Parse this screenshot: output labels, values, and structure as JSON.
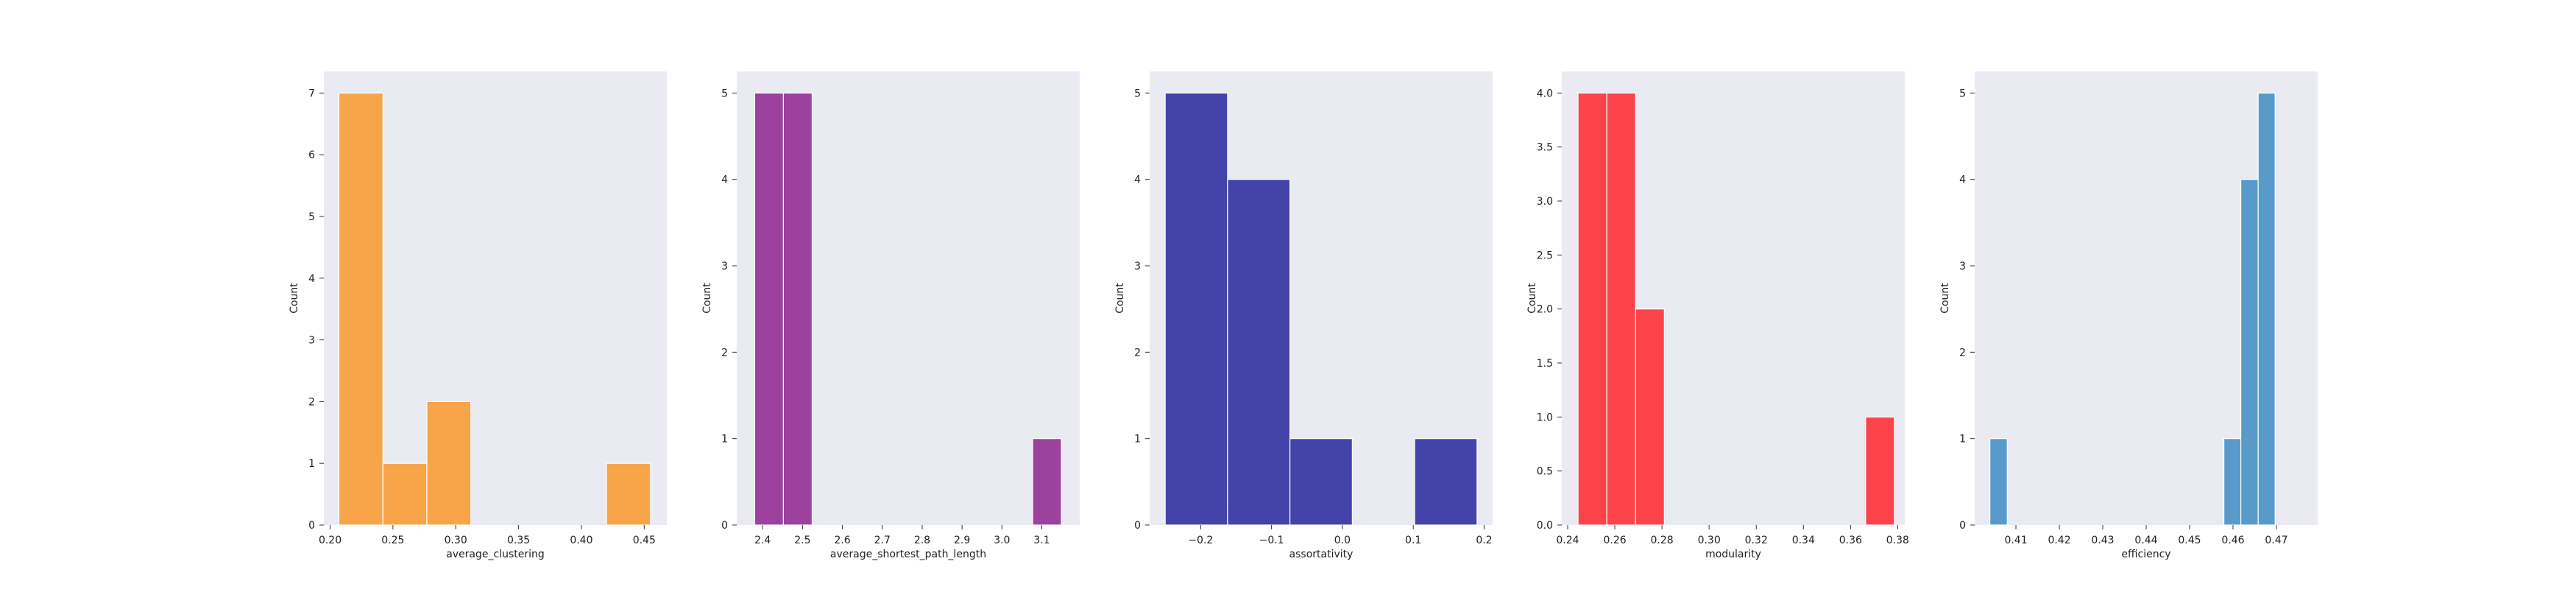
{
  "chart_data": [
    {
      "type": "bar",
      "subtype": "histogram",
      "color": "#F9A03F",
      "xlabel": "average_clustering",
      "ylabel": "Count",
      "xlim": [
        0.195,
        0.468
      ],
      "ylim": [
        0,
        7.35
      ],
      "xticks": [
        0.2,
        0.25,
        0.3,
        0.35,
        0.4,
        0.45
      ],
      "xtick_labels": [
        "0.20",
        "0.25",
        "0.30",
        "0.35",
        "0.40",
        "0.45"
      ],
      "yticks": [
        0,
        1,
        2,
        3,
        4,
        5,
        6,
        7
      ],
      "ytick_labels": [
        "0",
        "1",
        "2",
        "3",
        "4",
        "5",
        "6",
        "7"
      ],
      "grid": false,
      "bins": [
        {
          "x0": 0.207,
          "x1": 0.242,
          "count": 7
        },
        {
          "x0": 0.242,
          "x1": 0.277,
          "count": 1
        },
        {
          "x0": 0.277,
          "x1": 0.312,
          "count": 2
        },
        {
          "x0": 0.42,
          "x1": 0.455,
          "count": 1
        }
      ]
    },
    {
      "type": "bar",
      "subtype": "histogram",
      "color": "#983899",
      "xlabel": "average_shortest_path_length",
      "ylabel": "Count",
      "xlim": [
        2.335,
        3.195
      ],
      "ylim": [
        0,
        5.25
      ],
      "xticks": [
        2.4,
        2.5,
        2.6,
        2.7,
        2.8,
        2.9,
        3.0,
        3.1
      ],
      "xtick_labels": [
        "2.4",
        "2.5",
        "2.6",
        "2.7",
        "2.8",
        "2.9",
        "3.0",
        "3.1"
      ],
      "yticks": [
        0,
        1,
        2,
        3,
        4,
        5
      ],
      "ytick_labels": [
        "0",
        "1",
        "2",
        "3",
        "4",
        "5"
      ],
      "grid": false,
      "bins": [
        {
          "x0": 2.38,
          "x1": 2.452,
          "count": 5
        },
        {
          "x0": 2.452,
          "x1": 2.524,
          "count": 5
        },
        {
          "x0": 3.077,
          "x1": 3.149,
          "count": 1
        }
      ]
    },
    {
      "type": "bar",
      "subtype": "histogram",
      "color": "#3A3AA5",
      "xlabel": "assortativity",
      "ylabel": "Count",
      "xlim": [
        -0.272,
        0.212
      ],
      "ylim": [
        0,
        5.25
      ],
      "xticks": [
        -0.2,
        -0.1,
        0.0,
        0.1,
        0.2
      ],
      "xtick_labels": [
        "−0.2",
        "−0.1",
        "0.0",
        "0.1",
        "0.2"
      ],
      "yticks": [
        0,
        1,
        2,
        3,
        4,
        5
      ],
      "ytick_labels": [
        "0",
        "1",
        "2",
        "3",
        "4",
        "5"
      ],
      "grid": false,
      "bins": [
        {
          "x0": -0.25,
          "x1": -0.162,
          "count": 5
        },
        {
          "x0": -0.162,
          "x1": -0.074,
          "count": 4
        },
        {
          "x0": -0.074,
          "x1": 0.014,
          "count": 1
        },
        {
          "x0": 0.102,
          "x1": 0.19,
          "count": 1
        }
      ]
    },
    {
      "type": "bar",
      "subtype": "histogram",
      "color": "#FC3A3F",
      "xlabel": "modularity",
      "ylabel": "Count",
      "xlim": [
        0.2375,
        0.383
      ],
      "ylim": [
        0,
        4.2
      ],
      "xticks": [
        0.24,
        0.26,
        0.28,
        0.3,
        0.32,
        0.34,
        0.36,
        0.38
      ],
      "xtick_labels": [
        "0.24",
        "0.26",
        "0.28",
        "0.30",
        "0.32",
        "0.34",
        "0.36",
        "0.38"
      ],
      "yticks": [
        0,
        0.5,
        1.0,
        1.5,
        2.0,
        2.5,
        3.0,
        3.5,
        4.0
      ],
      "ytick_labels": [
        "0.0",
        "0.5",
        "1.0",
        "1.5",
        "2.0",
        "2.5",
        "3.0",
        "3.5",
        "4.0"
      ],
      "grid": false,
      "bins": [
        {
          "x0": 0.2444,
          "x1": 0.2566,
          "count": 4
        },
        {
          "x0": 0.2566,
          "x1": 0.2688,
          "count": 4
        },
        {
          "x0": 0.2688,
          "x1": 0.281,
          "count": 2
        },
        {
          "x0": 0.3664,
          "x1": 0.3786,
          "count": 1
        }
      ]
    },
    {
      "type": "bar",
      "subtype": "histogram",
      "color": "#5097C8",
      "xlabel": "efficiency",
      "ylabel": "Count",
      "xlim": [
        0.4005,
        0.4795
      ],
      "ylim": [
        0,
        5.25
      ],
      "xticks": [
        0.41,
        0.42,
        0.43,
        0.44,
        0.45,
        0.46,
        0.47
      ],
      "xtick_labels": [
        "0.41",
        "0.42",
        "0.43",
        "0.44",
        "0.45",
        "0.46",
        "0.47"
      ],
      "yticks": [
        0,
        1,
        2,
        3,
        4,
        5
      ],
      "ytick_labels": [
        "0",
        "1",
        "2",
        "3",
        "4",
        "5"
      ],
      "grid": false,
      "bins": [
        {
          "x0": 0.404,
          "x1": 0.408,
          "count": 1
        },
        {
          "x0": 0.4579,
          "x1": 0.4618,
          "count": 1
        },
        {
          "x0": 0.4618,
          "x1": 0.4658,
          "count": 4
        },
        {
          "x0": 0.4658,
          "x1": 0.4697,
          "count": 5
        }
      ]
    }
  ]
}
